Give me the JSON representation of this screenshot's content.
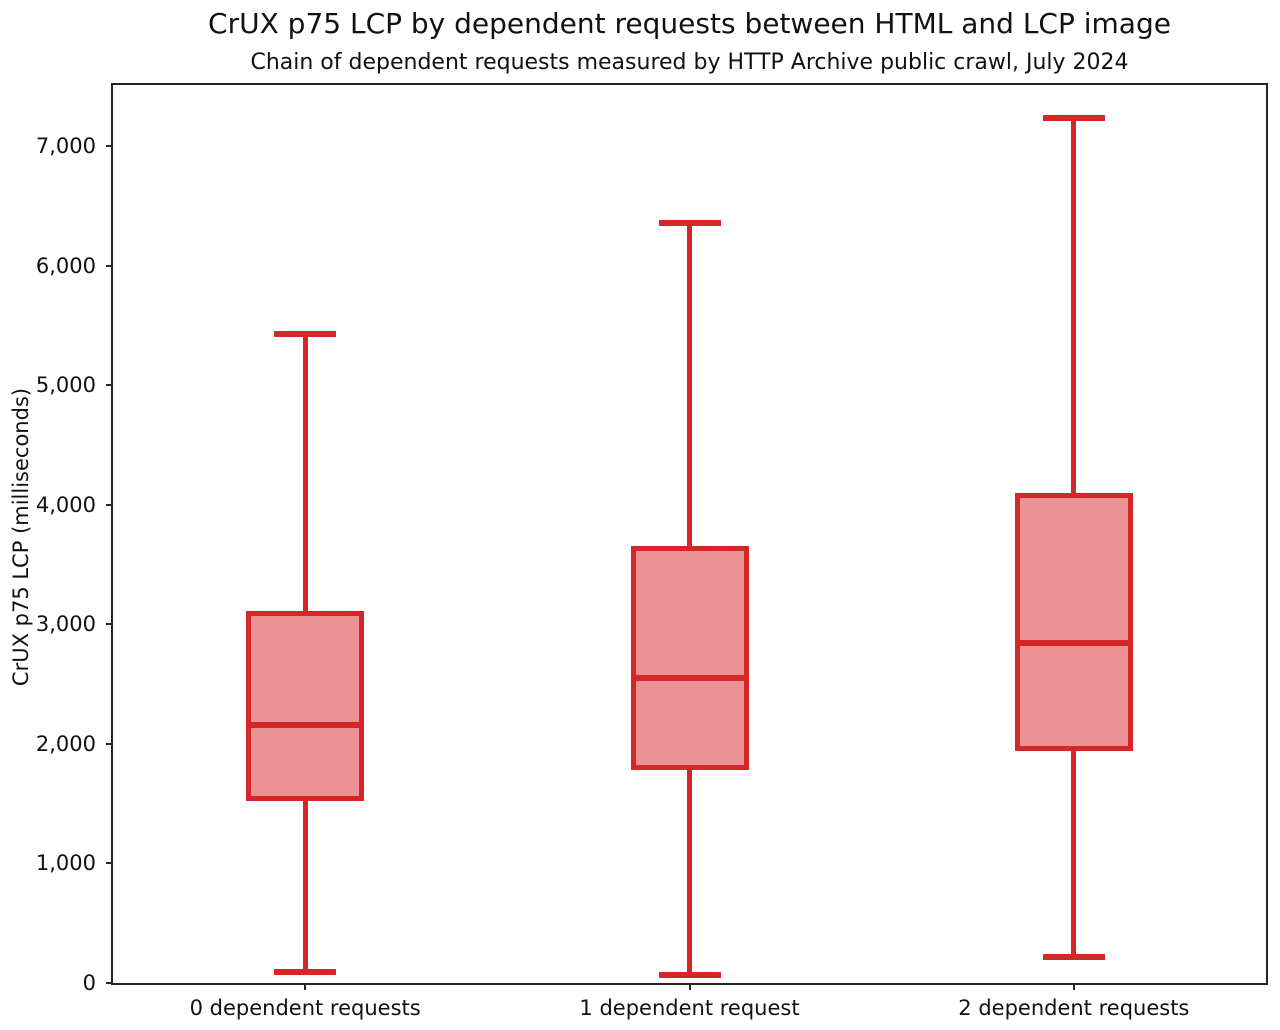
{
  "title": "CrUX p75 LCP by dependent requests between HTML and LCP image",
  "subtitle": "Chain of dependent requests measured by HTTP Archive public crawl, July 2024",
  "chart_data": {
    "type": "boxplot",
    "title": "CrUX p75 LCP by dependent requests between HTML and LCP image",
    "subtitle": "Chain of dependent requests measured by HTTP Archive public crawl, July 2024",
    "xlabel": "",
    "ylabel": "CrUX p75 LCP (milliseconds)",
    "ylim": [
      0,
      7510
    ],
    "yticks": [
      0,
      1000,
      2000,
      3000,
      4000,
      5000,
      6000,
      7000
    ],
    "ytick_labels": [
      "0",
      "1,000",
      "2,000",
      "3,000",
      "4,000",
      "5,000",
      "6,000",
      "7,000"
    ],
    "grid": false,
    "legend": null,
    "categories": [
      "0 dependent requests",
      "1 dependent request",
      "2 dependent requests"
    ],
    "series": [
      {
        "name": "0 dependent requests",
        "whisker_low": 90,
        "q1": 1540,
        "median": 2160,
        "q3": 3090,
        "whisker_high": 5430
      },
      {
        "name": "1 dependent request",
        "whisker_low": 70,
        "q1": 1800,
        "median": 2550,
        "q3": 3630,
        "whisker_high": 6360
      },
      {
        "name": "2 dependent requests",
        "whisker_low": 220,
        "q1": 1960,
        "median": 2840,
        "q3": 4080,
        "whisker_high": 7230
      }
    ],
    "colors": {
      "box_edge": "#d62728",
      "box_fill": "#eb9394",
      "median": "#d62728",
      "whisker": "#d62728",
      "axis": "#262626"
    }
  }
}
